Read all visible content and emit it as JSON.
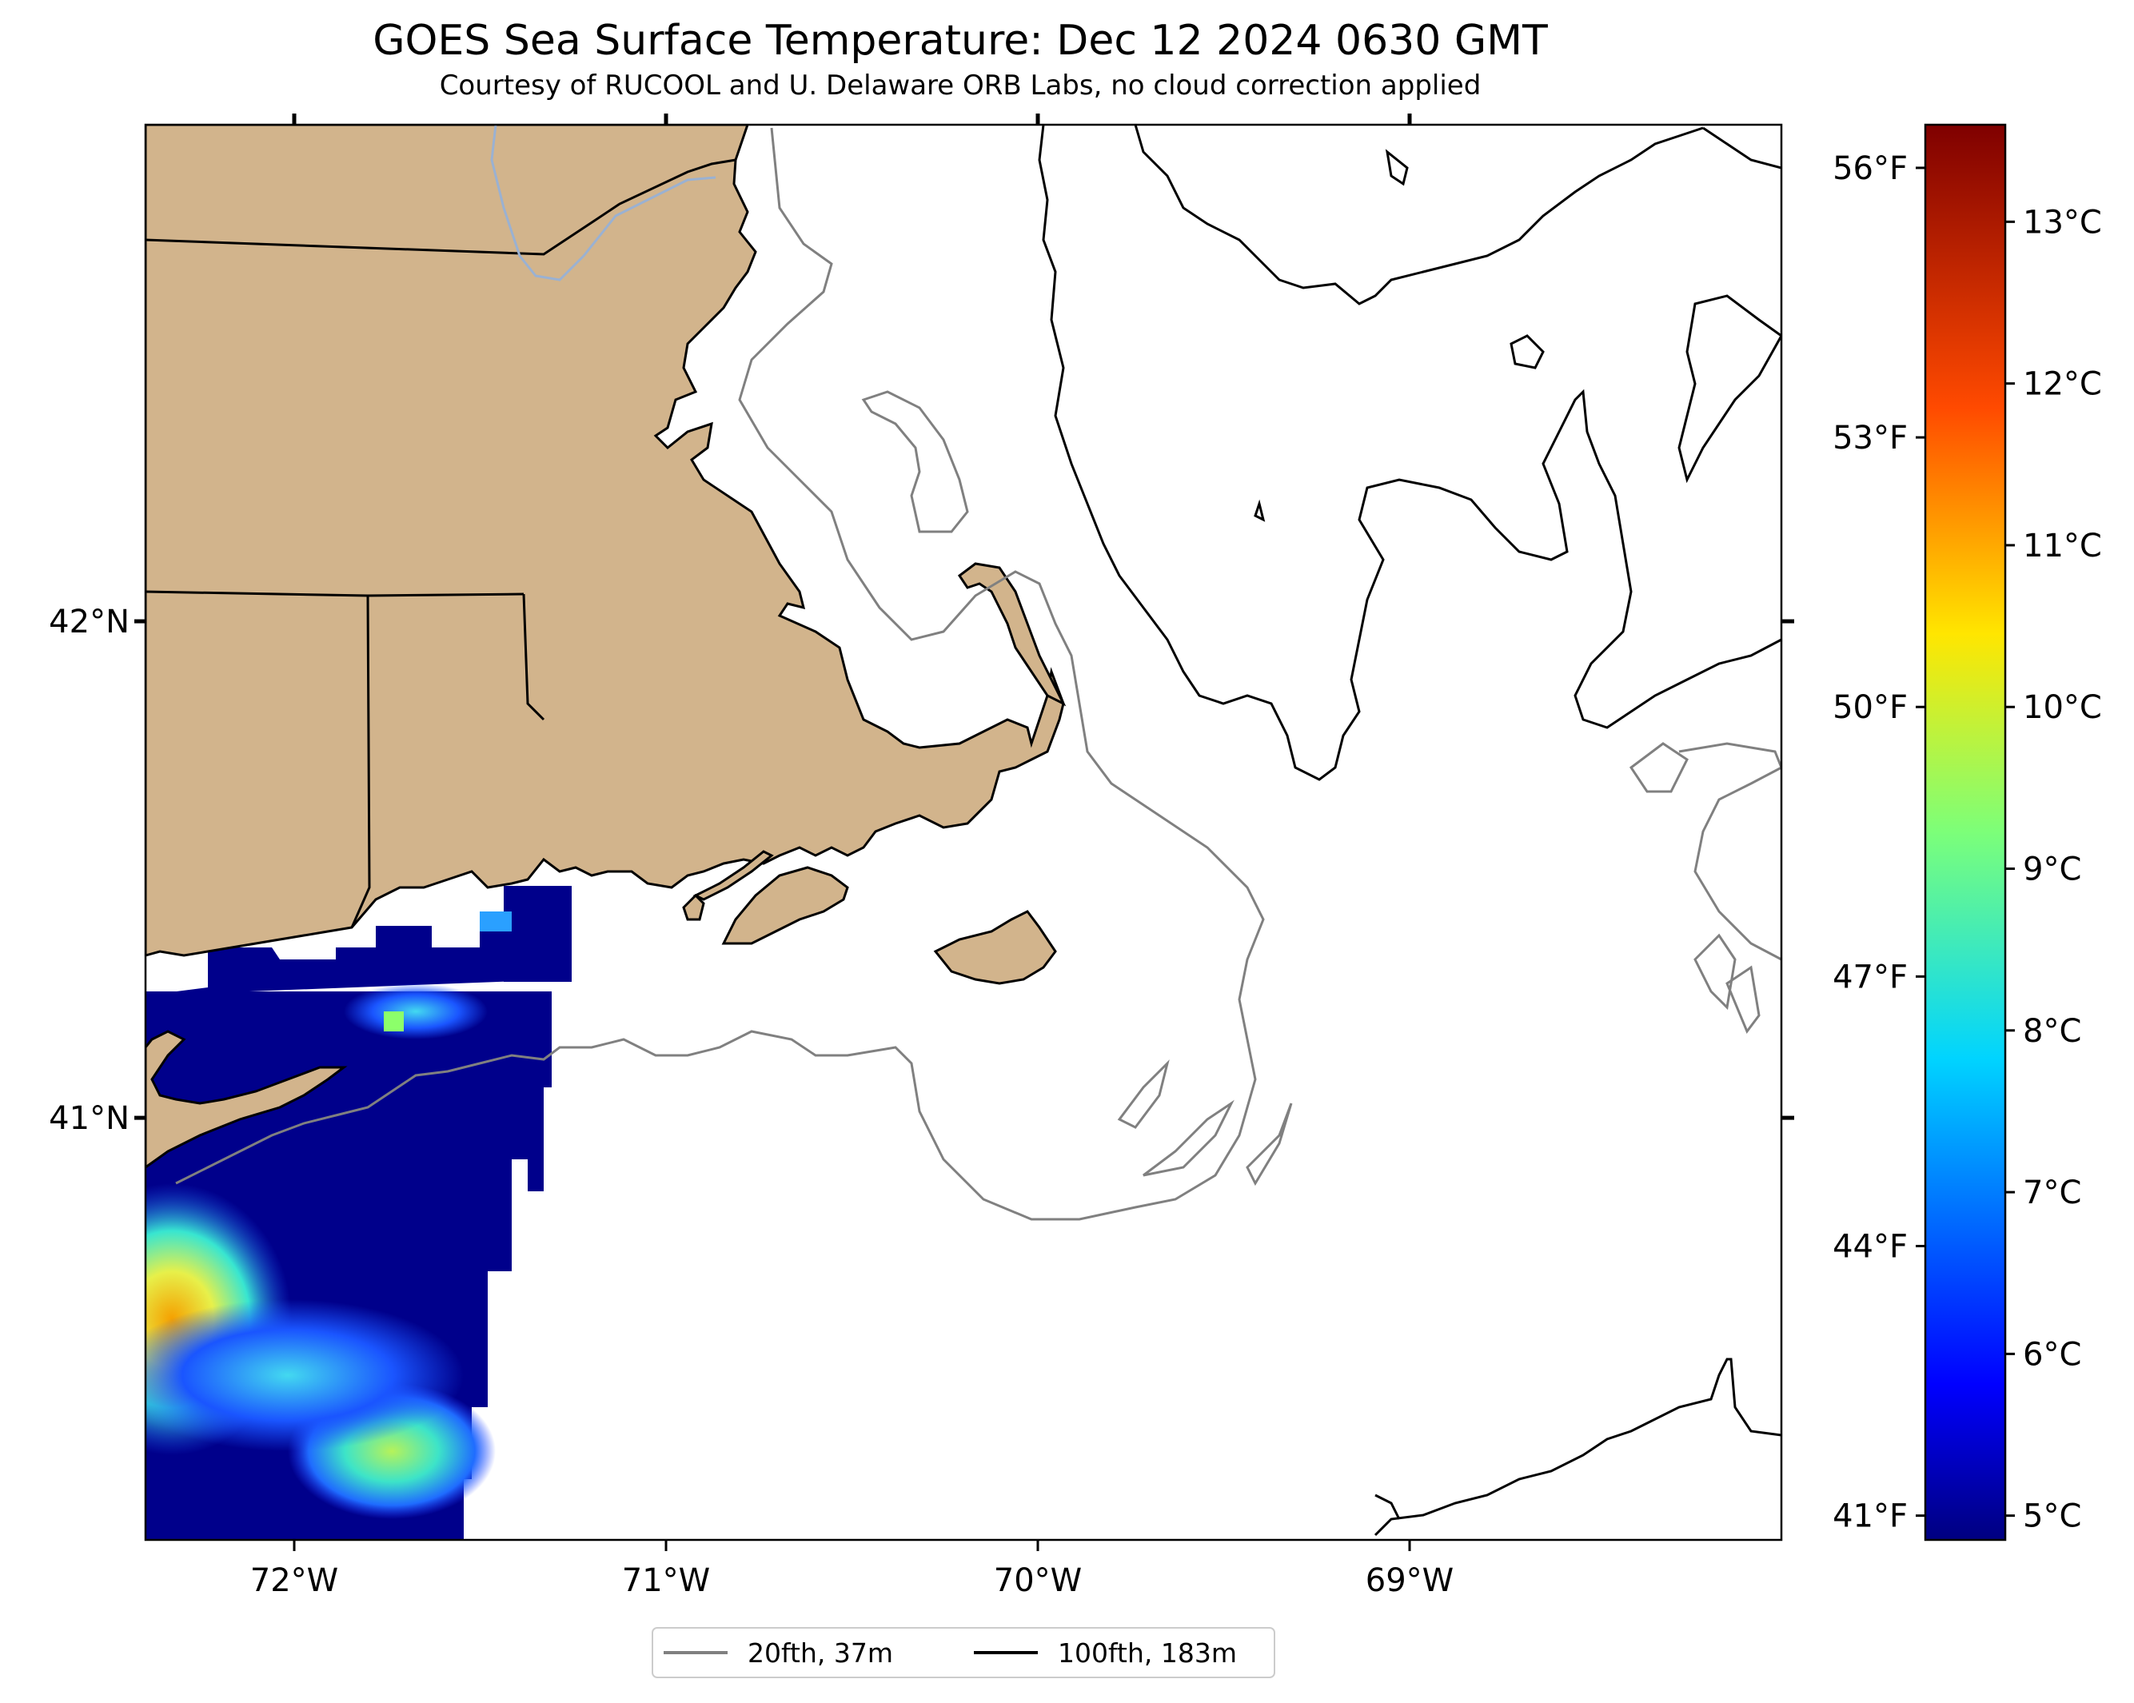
{
  "title": "GOES Sea Surface Temperature: Dec 12 2024 0630 GMT",
  "subtitle": "Courtesy of RUCOOL and U. Delaware ORB Labs, no cloud correction applied",
  "map": {
    "lon_range": [
      -72.4,
      -68.0
    ],
    "lat_range": [
      40.15,
      43.0
    ],
    "lon_ticks": [
      {
        "value": -72,
        "label": "72°W"
      },
      {
        "value": -71,
        "label": "71°W"
      },
      {
        "value": -70,
        "label": "70°W"
      },
      {
        "value": -69,
        "label": "69°W"
      }
    ],
    "lat_ticks": [
      {
        "value": 42,
        "label": "42°N"
      },
      {
        "value": 41,
        "label": "41°N"
      }
    ],
    "colors": {
      "land": "#d2b48c",
      "coast": "#000000",
      "isobath_20fth": "#808080",
      "isobath_100fth": "#000000",
      "river": "#9ab1d2"
    }
  },
  "colorbar": {
    "colormap": "jet",
    "celsius_range": [
      4.85,
      13.6
    ],
    "celsius_ticks": [
      {
        "value": 5,
        "label": "5°C"
      },
      {
        "value": 6,
        "label": "6°C"
      },
      {
        "value": 7,
        "label": "7°C"
      },
      {
        "value": 8,
        "label": "8°C"
      },
      {
        "value": 9,
        "label": "9°C"
      },
      {
        "value": 10,
        "label": "10°C"
      },
      {
        "value": 11,
        "label": "11°C"
      },
      {
        "value": 12,
        "label": "12°C"
      },
      {
        "value": 13,
        "label": "13°C"
      }
    ],
    "fahrenheit_ticks": [
      {
        "value": 41,
        "label": "41°F"
      },
      {
        "value": 44,
        "label": "44°F"
      },
      {
        "value": 47,
        "label": "47°F"
      },
      {
        "value": 50,
        "label": "50°F"
      },
      {
        "value": 53,
        "label": "53°F"
      },
      {
        "value": 56,
        "label": "56°F"
      }
    ]
  },
  "legend": {
    "items": [
      {
        "label": "20fth, 37m",
        "color": "#808080"
      },
      {
        "label": "100fth, 183m",
        "color": "#000000"
      }
    ]
  }
}
